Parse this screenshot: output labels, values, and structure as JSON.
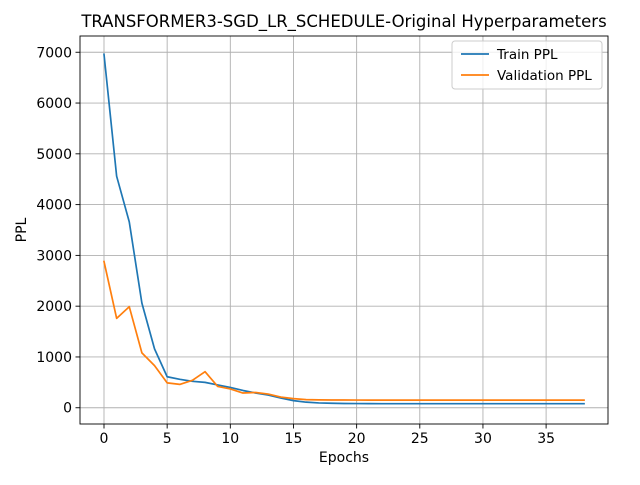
{
  "chart_data": {
    "type": "line",
    "title": "TRANSFORMER3-SGD_LR_SCHEDULE-Original Hyperparameters",
    "xlabel": "Epochs",
    "ylabel": "PPL",
    "xlim": [
      -1.9,
      39.9
    ],
    "ylim": [
      -320,
      7320
    ],
    "xticks": [
      0,
      5,
      10,
      15,
      20,
      25,
      30,
      35
    ],
    "yticks": [
      0,
      1000,
      2000,
      3000,
      4000,
      5000,
      6000,
      7000
    ],
    "grid": true,
    "legend_position": "top-right",
    "x": [
      0,
      1,
      2,
      3,
      4,
      5,
      6,
      7,
      8,
      9,
      10,
      11,
      12,
      13,
      14,
      15,
      16,
      17,
      18,
      19,
      20,
      21,
      22,
      23,
      24,
      25,
      26,
      27,
      28,
      29,
      30,
      31,
      32,
      33,
      34,
      35,
      36,
      37,
      38
    ],
    "series": [
      {
        "name": "Train PPL",
        "color": "#1f77b4",
        "values": [
          6960,
          4560,
          3660,
          2060,
          1160,
          610,
          560,
          520,
          500,
          450,
          400,
          340,
          290,
          250,
          190,
          140,
          110,
          95,
          88,
          84,
          82,
          81,
          80,
          80,
          80,
          80,
          80,
          80,
          80,
          80,
          80,
          80,
          80,
          80,
          80,
          80,
          80,
          80,
          80
        ]
      },
      {
        "name": "Validation PPL",
        "color": "#ff7f0e",
        "values": [
          2880,
          1760,
          1990,
          1080,
          830,
          490,
          460,
          540,
          710,
          420,
          370,
          290,
          300,
          270,
          210,
          180,
          160,
          155,
          153,
          152,
          151,
          150,
          150,
          150,
          150,
          150,
          150,
          150,
          150,
          150,
          150,
          150,
          150,
          150,
          150,
          150,
          150,
          150,
          150
        ]
      }
    ]
  }
}
